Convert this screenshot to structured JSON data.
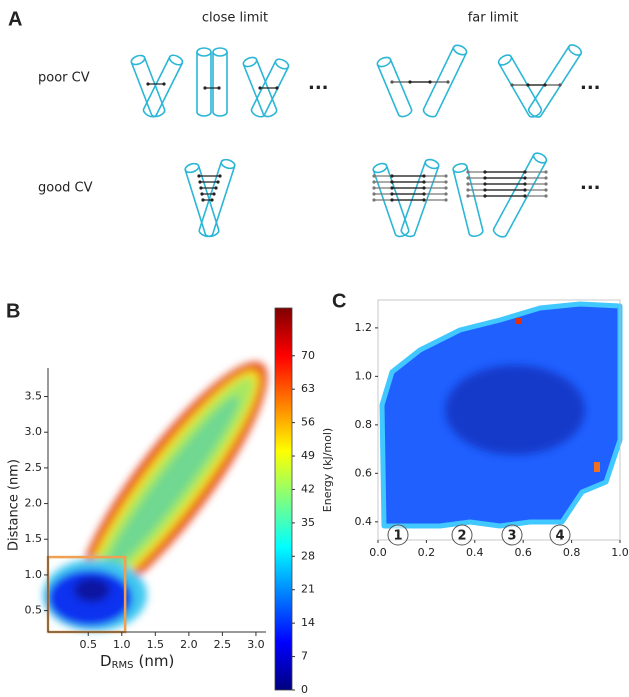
{
  "panel_a": {
    "label": "A",
    "columns": [
      "close limit",
      "far limit"
    ],
    "rows": [
      "poor CV",
      "good CV"
    ],
    "ellipsis": "..."
  },
  "chart_data": [
    {
      "type": "heatmap",
      "panel": "B",
      "ylabel": "Distance (nm)",
      "xlabel_base": "D",
      "xlabel_sub": "RMS",
      "xlabel_unit": "(nm)",
      "xlim": [
        -0.1,
        3.15
      ],
      "ylim": [
        0.2,
        3.9
      ],
      "xticks": [
        0.5,
        {
          "value": 1,
          "label": "1.0"
        },
        1.5,
        {
          "value": 2,
          "label": "2.0"
        },
        2.5,
        {
          "value": 3,
          "label": "3.0"
        }
      ],
      "yticks": [
        0.5,
        {
          "value": 1,
          "label": "1.0"
        },
        1.5,
        {
          "value": 2,
          "label": "2.0"
        },
        2.5,
        {
          "value": 3,
          "label": "3.0"
        },
        3.5
      ],
      "highlight_color": "#f0a050",
      "colorbar": {
        "label": "Energy (kJ/mol)",
        "clim": [
          0,
          80
        ],
        "ticks": [
          0,
          7,
          14,
          21,
          28,
          35,
          42,
          49,
          56,
          63,
          70
        ],
        "colors": [
          "#00007f",
          "#0000ff",
          "#007fff",
          "#00ffff",
          "#7fff7f",
          "#ffff00",
          "#ff7f00",
          "#ff0000",
          "#7f0000"
        ]
      }
    },
    {
      "type": "heatmap",
      "panel": "C",
      "xlim": [
        0,
        1
      ],
      "ylim": [
        0.325,
        1.315
      ],
      "xticks": [
        {
          "value": 0,
          "label": "0.0"
        },
        0.2,
        0.4,
        0.6,
        0.8,
        {
          "value": 1,
          "label": "1.0"
        }
      ],
      "yticks": [
        0.4,
        0.6,
        0.8,
        {
          "value": 1,
          "label": "1.0"
        },
        1.2
      ],
      "markers": [
        "1",
        "2",
        "3",
        "4"
      ]
    }
  ]
}
